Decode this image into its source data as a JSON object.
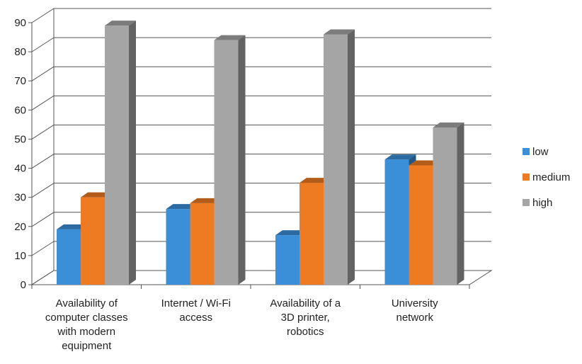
{
  "chart_data": {
    "type": "bar",
    "categories": [
      [
        "Availability of",
        "computer classes",
        "with modern",
        "equipment"
      ],
      [
        "Internet / Wi-Fi",
        "access"
      ],
      [
        "Availability of a",
        "3D printer,",
        "robotics"
      ],
      [
        "University",
        "network"
      ]
    ],
    "series": [
      {
        "name": "low",
        "values": [
          19,
          26,
          17,
          43
        ],
        "color": "#3b8fd8"
      },
      {
        "name": "medium",
        "values": [
          30,
          28,
          35,
          41
        ],
        "color": "#ee7b22"
      },
      {
        "name": "high",
        "values": [
          89,
          84,
          86,
          54
        ],
        "color": "#a5a5a5"
      }
    ],
    "yticks": [
      0,
      10,
      20,
      30,
      40,
      50,
      60,
      70,
      80,
      90
    ],
    "ylim": [
      0,
      90
    ],
    "grid": true,
    "legend_position": "right",
    "title": "",
    "xlabel": "",
    "ylabel": ""
  }
}
